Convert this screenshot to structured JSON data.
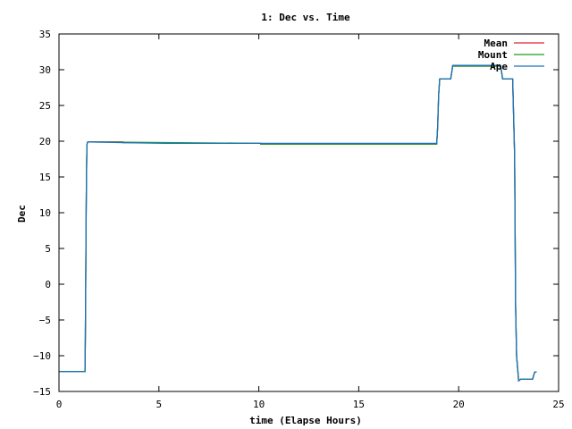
{
  "chart_data": {
    "type": "line",
    "title": "1: Dec vs. Time",
    "xlabel": "time (Elapse Hours)",
    "ylabel": "Dec",
    "xlim": [
      0,
      25
    ],
    "ylim": [
      -15,
      35
    ],
    "xticks": [
      0,
      5,
      10,
      15,
      20,
      25
    ],
    "yticks": [
      -15,
      -10,
      -5,
      0,
      5,
      10,
      15,
      20,
      25,
      30,
      35
    ],
    "grid": false,
    "legend_position": "top-right",
    "series": [
      {
        "name": "Mean",
        "color": "#e0262b",
        "x": [
          0,
          1.3,
          1.32,
          1.34,
          1.36,
          1.38,
          1.4,
          1.42,
          1.44,
          1.46,
          1.5,
          3.2,
          3.2,
          5.3,
          5.3,
          10.1,
          10.1,
          18.9,
          18.95,
          19.0,
          19.05,
          19.1,
          19.6,
          19.65,
          19.7,
          22.0,
          22.1,
          22.2,
          22.7,
          22.8,
          22.85,
          22.9,
          23.0,
          23.05,
          23.1,
          23.7,
          23.75,
          23.8,
          23.9
        ],
        "y": [
          -12.2,
          -12.2,
          -7.5,
          2,
          10,
          16.5,
          19.5,
          19.8,
          19.9,
          19.9,
          19.9,
          19.9,
          19.8,
          19.8,
          19.7,
          19.7,
          19.6,
          19.6,
          22,
          26.5,
          28.7,
          28.7,
          28.7,
          29.6,
          30.5,
          30.5,
          30.5,
          28.7,
          28.7,
          18,
          -3,
          -10,
          -13.5,
          -13.4,
          -13.3,
          -13.3,
          -12.8,
          -12.3,
          -12.3
        ]
      },
      {
        "name": "Mount",
        "color": "#1a9e1a",
        "x": [
          0,
          1.3,
          1.32,
          1.34,
          1.36,
          1.38,
          1.4,
          1.42,
          1.44,
          1.46,
          1.5,
          10.1,
          10.1,
          18.9,
          18.95,
          19.0,
          19.05,
          19.1,
          19.6,
          19.65,
          19.7,
          22.0,
          22.1,
          22.2,
          22.7,
          22.8,
          22.85,
          22.9,
          23.0,
          23.05,
          23.1,
          23.7,
          23.75,
          23.8,
          23.9
        ],
        "y": [
          -12.2,
          -12.2,
          -7.5,
          2,
          10,
          16.5,
          19.5,
          19.8,
          19.9,
          19.9,
          19.9,
          19.7,
          19.6,
          19.6,
          22,
          26.5,
          28.7,
          28.7,
          28.7,
          29.6,
          30.5,
          30.5,
          30.5,
          28.7,
          28.7,
          18,
          -3,
          -10,
          -13.5,
          -13.4,
          -13.3,
          -13.3,
          -12.8,
          -12.3,
          -12.3
        ]
      },
      {
        "name": "Ape",
        "color": "#1a72c0",
        "x": [
          0,
          1.3,
          1.32,
          1.34,
          1.36,
          1.38,
          1.4,
          1.42,
          1.44,
          1.46,
          1.5,
          3.2,
          5.3,
          10.1,
          18.9,
          18.95,
          19.0,
          19.05,
          19.1,
          19.6,
          19.65,
          19.7,
          22.0,
          22.1,
          22.2,
          22.7,
          22.8,
          22.85,
          22.9,
          23.0,
          23.05,
          23.1,
          23.7,
          23.75,
          23.8,
          23.9
        ],
        "y": [
          -12.2,
          -12.2,
          -7.5,
          2,
          10,
          16.5,
          19.5,
          19.8,
          19.9,
          19.9,
          19.9,
          19.8,
          19.7,
          19.7,
          19.7,
          22,
          26.5,
          28.7,
          28.7,
          28.7,
          29.6,
          30.6,
          30.6,
          30.5,
          28.7,
          28.7,
          18,
          -3,
          -10,
          -13.5,
          -13.4,
          -13.3,
          -13.3,
          -12.8,
          -12.3,
          -12.3
        ]
      }
    ]
  }
}
